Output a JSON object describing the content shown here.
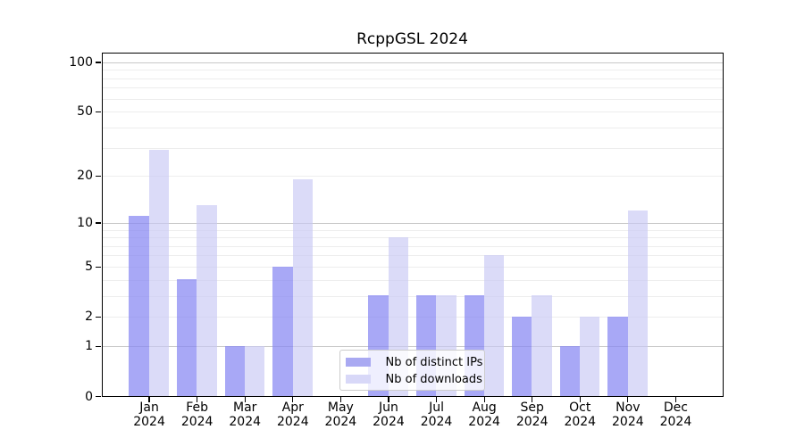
{
  "chart_data": {
    "type": "bar",
    "title": "RcppGSL 2024",
    "months": [
      "Jan",
      "Feb",
      "Mar",
      "Apr",
      "May",
      "Jun",
      "Jul",
      "Aug",
      "Sep",
      "Oct",
      "Nov",
      "Dec"
    ],
    "year": "2024",
    "series": [
      {
        "name": "Nb of distinct IPs",
        "legend_color": "#a9a9f2",
        "fill": "rgba(135,135,242,0.72)",
        "values": [
          11,
          4,
          1,
          5,
          0,
          3,
          3,
          3,
          2,
          1,
          2,
          0
        ]
      },
      {
        "name": "Nb of downloads",
        "legend_color": "#d8d8f8",
        "fill": "rgba(200,200,245,0.65)",
        "values": [
          29,
          13,
          1,
          19,
          0,
          8,
          3,
          6,
          3,
          2,
          12,
          0
        ]
      }
    ],
    "yticks": [
      0,
      1,
      2,
      5,
      10,
      20,
      50,
      100
    ],
    "scale": "log1p",
    "ylim": [
      0,
      115
    ],
    "xlabel": "",
    "ylabel": "",
    "grid": "horizontal, major at powers of 10, faint minors",
    "grid_major_color": "#c8c8c8",
    "grid_minor_color": "#ededed",
    "legend_position": "lower center inside"
  }
}
